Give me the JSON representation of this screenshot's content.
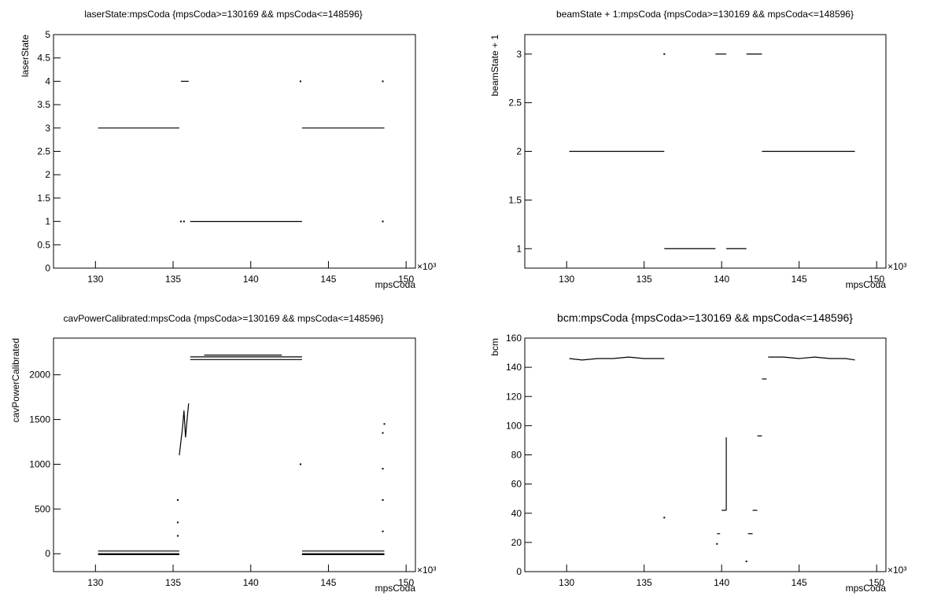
{
  "chart_data": [
    {
      "type": "line",
      "title": "laserState:mpsCoda {mpsCoda>=130169 && mpsCoda<=148596}",
      "x_label": "mpsCoda",
      "y_label": "laserState",
      "x_exponent": "×10³",
      "color": "#000000",
      "xlim": [
        127.3,
        150.6
      ],
      "xticks": [
        130,
        135,
        140,
        145,
        150
      ],
      "ylim": [
        0,
        5
      ],
      "yticks": [
        0,
        0.5,
        1,
        1.5,
        2,
        2.5,
        3,
        3.5,
        4,
        4.5,
        5
      ],
      "x": [
        130.17,
        135.4,
        null,
        135.5,
        136.0,
        null,
        135.5,
        null,
        135.7,
        null,
        136.1,
        143.3,
        null,
        143.3,
        148.6,
        null,
        143.2,
        null,
        148.5,
        null,
        148.5
      ],
      "values": [
        3,
        3,
        null,
        4,
        4,
        null,
        1,
        null,
        1,
        null,
        1,
        1,
        null,
        3,
        3,
        null,
        4,
        null,
        4,
        null,
        1
      ]
    },
    {
      "type": "line",
      "title": "beamState + 1:mpsCoda {mpsCoda>=130169 && mpsCoda<=148596}",
      "x_label": "mpsCoda",
      "y_label": "beamState + 1",
      "x_exponent": "×10³",
      "color": "#000000",
      "xlim": [
        127.3,
        150.6
      ],
      "xticks": [
        130,
        135,
        140,
        145,
        150
      ],
      "ylim": [
        0.8,
        3.2
      ],
      "yticks": [
        1,
        1.5,
        2,
        2.5,
        3
      ],
      "x": [
        130.17,
        136.3,
        null,
        136.3,
        null,
        136.3,
        139.6,
        null,
        139.6,
        140.3,
        null,
        140.3,
        141.6,
        null,
        141.6,
        142.6,
        null,
        142.6,
        148.6
      ],
      "values": [
        2,
        2,
        null,
        3,
        null,
        1,
        1,
        null,
        3,
        3,
        null,
        1,
        1,
        null,
        3,
        3,
        null,
        2,
        2
      ]
    },
    {
      "type": "line",
      "title": "cavPowerCalibrated:mpsCoda {mpsCoda>=130169 && mpsCoda<=148596}",
      "x_label": "mpsCoda",
      "y_label": "cavPowerCalibrated",
      "x_exponent": "×10³",
      "color": "#000000",
      "xlim": [
        127.3,
        150.6
      ],
      "xticks": [
        130,
        135,
        140,
        145,
        150
      ],
      "ylim": [
        -200,
        2410
      ],
      "yticks": [
        0,
        500,
        1000,
        1500,
        2000
      ],
      "x": [
        130.17,
        135.4,
        null,
        130.17,
        135.4,
        null,
        130.17,
        135.4,
        null,
        135.3,
        null,
        135.3,
        null,
        135.3,
        null,
        135.4,
        135.5,
        135.6,
        135.7,
        135.8,
        135.9,
        136.0,
        null,
        136.1,
        143.3,
        null,
        136.1,
        143.3,
        null,
        137,
        142,
        null,
        143.2,
        null,
        143.3,
        148.6,
        null,
        143.3,
        148.6,
        null,
        143.3,
        148.6,
        null,
        148.5,
        null,
        148.5,
        null,
        148.5,
        null,
        148.5,
        null,
        148.6
      ],
      "values": [
        30,
        30,
        null,
        0,
        0,
        null,
        -10,
        -10,
        null,
        200,
        null,
        350,
        null,
        600,
        null,
        1100,
        1250,
        1400,
        1600,
        1300,
        1500,
        1680,
        null,
        2200,
        2200,
        null,
        2170,
        2170,
        null,
        2220,
        2220,
        null,
        1000,
        null,
        30,
        30,
        null,
        0,
        0,
        null,
        -10,
        -10,
        null,
        250,
        null,
        600,
        null,
        950,
        null,
        1350,
        null,
        1450
      ]
    },
    {
      "type": "line",
      "title": "bcm:mpsCoda {mpsCoda>=130169 && mpsCoda<=148596}",
      "x_label": "mpsCoda",
      "y_label": "bcm",
      "x_exponent": "×10³",
      "color": "#000000",
      "xlim": [
        127.3,
        150.6
      ],
      "xticks": [
        130,
        135,
        140,
        145,
        150
      ],
      "ylim": [
        0,
        160
      ],
      "yticks": [
        0,
        20,
        40,
        60,
        80,
        100,
        120,
        140,
        160
      ],
      "x": [
        130.17,
        131,
        132,
        133,
        134,
        135,
        136.3,
        null,
        136.3,
        null,
        139.7,
        null,
        139.7,
        139.9,
        null,
        140.0,
        140.3,
        null,
        140.3,
        140.3,
        null,
        141.6,
        null,
        141.7,
        142.0,
        null,
        142.0,
        142.3,
        null,
        142.3,
        142.6,
        null,
        142.6,
        142.9,
        null,
        143.0,
        144,
        145,
        146,
        147,
        148,
        148.6
      ],
      "values": [
        146,
        145,
        146,
        146,
        147,
        146,
        146,
        null,
        37,
        null,
        19,
        null,
        26,
        26,
        null,
        42,
        42,
        null,
        42,
        92,
        null,
        7,
        null,
        26,
        26,
        null,
        42,
        42,
        null,
        93,
        93,
        null,
        132,
        132,
        null,
        147,
        147,
        146,
        147,
        146,
        146,
        145
      ]
    }
  ]
}
